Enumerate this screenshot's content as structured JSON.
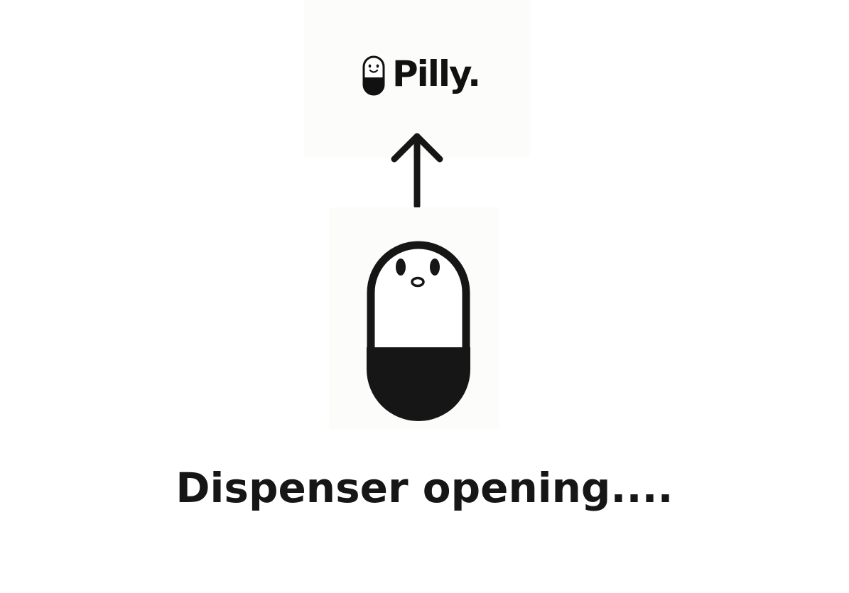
{
  "app": {
    "brand_name": "Pilly."
  },
  "status": {
    "message": "Dispenser opening...."
  },
  "icons": {
    "logo": "pill-smiley-icon",
    "indicator": "arrow-up-icon",
    "mascot": "pill-mascot-icon"
  },
  "colors": {
    "ink": "#161616",
    "background": "#ffffff",
    "card": "#fcfcfb"
  }
}
